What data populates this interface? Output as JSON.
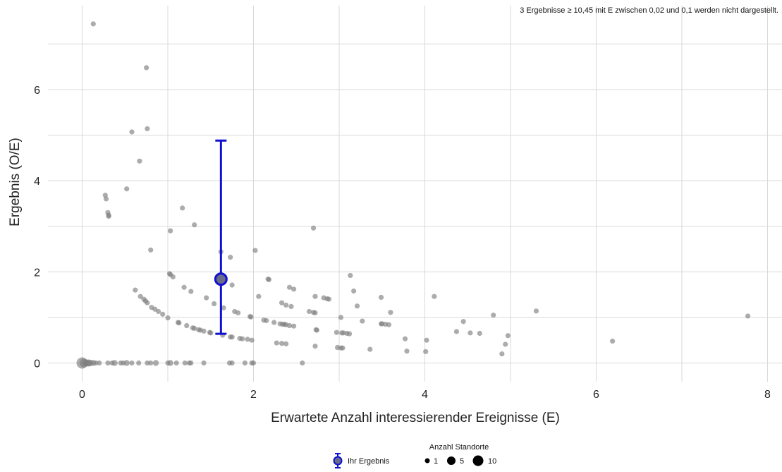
{
  "chart_data": {
    "type": "scatter",
    "xlabel": "Erwartete Anzahl interessierender Ereignisse (E)",
    "ylabel": "Ergebnis (O/E)",
    "xlim": [
      -0.4,
      8.2
    ],
    "ylim": [
      -0.4,
      7.7
    ],
    "x_ticks": [
      0,
      2,
      4,
      6,
      8
    ],
    "y_ticks": [
      0,
      2,
      4,
      6
    ],
    "x_tick_labels": [
      "0",
      "2",
      "4",
      "6",
      "8"
    ],
    "y_tick_labels": [
      "0",
      "2",
      "4",
      "6"
    ],
    "grid": true,
    "note": "3 Ergebnisse ≥ 10,45 mit E zwischen 0,02 und 0,1 werden nicht dargestellt.",
    "highlight": {
      "label": "Ihr Ergebnis",
      "x": 1.62,
      "y": 1.84,
      "ci_low": 0.64,
      "ci_high": 4.88,
      "color": "#1010d0"
    },
    "size_legend": {
      "title": "Anzahl Standorte",
      "sizes": [
        1,
        5,
        10
      ],
      "labels": [
        "1",
        "5",
        "10"
      ]
    },
    "point_color": "#808080",
    "points": [
      [
        0.0,
        0.0,
        10
      ],
      [
        0.02,
        0.0,
        5
      ],
      [
        0.04,
        0.0,
        4
      ],
      [
        0.06,
        0.0,
        3
      ],
      [
        0.08,
        0.0,
        3
      ],
      [
        0.1,
        0.0,
        2
      ],
      [
        0.13,
        0.0,
        2
      ],
      [
        0.16,
        0.0,
        1
      ],
      [
        0.2,
        0.0,
        1
      ],
      [
        0.3,
        0.0,
        1
      ],
      [
        0.35,
        0.0,
        1
      ],
      [
        0.38,
        0.0,
        2
      ],
      [
        0.45,
        0.0,
        1
      ],
      [
        0.48,
        0.0,
        1
      ],
      [
        0.52,
        0.0,
        2
      ],
      [
        0.58,
        0.0,
        1
      ],
      [
        0.66,
        0.0,
        1
      ],
      [
        0.76,
        0.0,
        1
      ],
      [
        0.8,
        0.0,
        1
      ],
      [
        0.86,
        0.0,
        2
      ],
      [
        1.0,
        0.0,
        1
      ],
      [
        1.03,
        0.0,
        2
      ],
      [
        1.1,
        0.0,
        1
      ],
      [
        1.2,
        0.0,
        1
      ],
      [
        1.25,
        0.0,
        1
      ],
      [
        1.27,
        0.0,
        1
      ],
      [
        1.42,
        0.0,
        1
      ],
      [
        1.72,
        0.0,
        1
      ],
      [
        1.75,
        0.0,
        1
      ],
      [
        1.9,
        0.0,
        1
      ],
      [
        1.98,
        0.0,
        1
      ],
      [
        2.0,
        0.0,
        1
      ],
      [
        2.57,
        0.0,
        1
      ],
      [
        0.13,
        7.44,
        1
      ],
      [
        0.75,
        6.48,
        1
      ],
      [
        0.58,
        5.07,
        1
      ],
      [
        0.76,
        5.14,
        1
      ],
      [
        0.67,
        4.43,
        1
      ],
      [
        0.52,
        3.82,
        1
      ],
      [
        0.27,
        3.68,
        1
      ],
      [
        0.28,
        3.6,
        1
      ],
      [
        0.3,
        3.3,
        1
      ],
      [
        0.31,
        3.24,
        1
      ],
      [
        0.31,
        3.22,
        1
      ],
      [
        1.17,
        3.4,
        1
      ],
      [
        1.31,
        3.03,
        1
      ],
      [
        1.03,
        2.9,
        1
      ],
      [
        0.8,
        2.48,
        1
      ],
      [
        2.7,
        2.96,
        1
      ],
      [
        2.02,
        2.47,
        1
      ],
      [
        1.62,
        2.44,
        1
      ],
      [
        1.73,
        2.32,
        1
      ],
      [
        1.02,
        1.96,
        1
      ],
      [
        1.03,
        1.94,
        1
      ],
      [
        1.06,
        1.89,
        1
      ],
      [
        2.17,
        1.84,
        1
      ],
      [
        2.18,
        1.83,
        1
      ],
      [
        3.13,
        1.92,
        1
      ],
      [
        1.75,
        1.71,
        1
      ],
      [
        0.62,
        1.6,
        1
      ],
      [
        1.19,
        1.66,
        1
      ],
      [
        1.27,
        1.57,
        1
      ],
      [
        2.42,
        1.66,
        1
      ],
      [
        2.47,
        1.62,
        1
      ],
      [
        3.17,
        1.58,
        1
      ],
      [
        0.68,
        1.46,
        1
      ],
      [
        0.72,
        1.4,
        1
      ],
      [
        0.74,
        1.36,
        1
      ],
      [
        0.76,
        1.32,
        1
      ],
      [
        1.45,
        1.43,
        1
      ],
      [
        2.06,
        1.46,
        1
      ],
      [
        2.72,
        1.46,
        1
      ],
      [
        2.82,
        1.43,
        1
      ],
      [
        2.86,
        1.41,
        1
      ],
      [
        2.88,
        1.4,
        1
      ],
      [
        3.49,
        1.44,
        1
      ],
      [
        4.11,
        1.46,
        1
      ],
      [
        0.81,
        1.22,
        1
      ],
      [
        0.85,
        1.18,
        1
      ],
      [
        0.89,
        1.13,
        1
      ],
      [
        1.54,
        1.3,
        1
      ],
      [
        1.65,
        1.21,
        1
      ],
      [
        2.33,
        1.32,
        1
      ],
      [
        2.38,
        1.27,
        1
      ],
      [
        2.44,
        1.24,
        1
      ],
      [
        3.21,
        1.25,
        1
      ],
      [
        0.94,
        1.07,
        1
      ],
      [
        1.0,
        0.99,
        1
      ],
      [
        1.78,
        1.13,
        1
      ],
      [
        1.82,
        1.1,
        1
      ],
      [
        2.65,
        1.13,
        1
      ],
      [
        2.7,
        1.11,
        1
      ],
      [
        2.72,
        1.1,
        1
      ],
      [
        3.6,
        1.11,
        1
      ],
      [
        3.02,
        1.0,
        1
      ],
      [
        4.45,
        0.91,
        1
      ],
      [
        4.8,
        1.05,
        1
      ],
      [
        5.3,
        1.14,
        1
      ],
      [
        7.77,
        1.03,
        1
      ],
      [
        1.12,
        0.89,
        1
      ],
      [
        1.13,
        0.88,
        1
      ],
      [
        1.22,
        0.82,
        1
      ],
      [
        1.29,
        0.77,
        1
      ],
      [
        1.31,
        0.76,
        1
      ],
      [
        1.36,
        0.73,
        1
      ],
      [
        1.38,
        0.72,
        1
      ],
      [
        1.42,
        0.7,
        1
      ],
      [
        1.49,
        0.67,
        1
      ],
      [
        1.5,
        0.66,
        1
      ],
      [
        1.96,
        1.02,
        1
      ],
      [
        1.97,
        1.01,
        1
      ],
      [
        2.12,
        0.94,
        1
      ],
      [
        2.15,
        0.93,
        1
      ],
      [
        2.24,
        0.89,
        1
      ],
      [
        2.31,
        0.86,
        1
      ],
      [
        2.34,
        0.85,
        1
      ],
      [
        2.36,
        0.85,
        1
      ],
      [
        2.38,
        0.84,
        1
      ],
      [
        2.42,
        0.82,
        1
      ],
      [
        2.47,
        0.81,
        1
      ],
      [
        2.73,
        0.73,
        1
      ],
      [
        2.74,
        0.72,
        1
      ],
      [
        2.97,
        0.67,
        1
      ],
      [
        3.03,
        0.66,
        1
      ],
      [
        3.05,
        0.66,
        1
      ],
      [
        3.09,
        0.65,
        1
      ],
      [
        3.12,
        0.64,
        1
      ],
      [
        3.27,
        0.92,
        1
      ],
      [
        3.49,
        0.86,
        1
      ],
      [
        3.5,
        0.86,
        1
      ],
      [
        3.54,
        0.85,
        1
      ],
      [
        3.58,
        0.84,
        1
      ],
      [
        4.37,
        0.69,
        1
      ],
      [
        4.53,
        0.66,
        1
      ],
      [
        4.64,
        0.65,
        1
      ],
      [
        4.97,
        0.6,
        1
      ],
      [
        1.64,
        0.61,
        1
      ],
      [
        1.73,
        0.57,
        1
      ],
      [
        1.75,
        0.57,
        1
      ],
      [
        1.84,
        0.54,
        1
      ],
      [
        1.87,
        0.53,
        1
      ],
      [
        1.93,
        0.52,
        1
      ],
      [
        1.98,
        0.5,
        1
      ],
      [
        2.27,
        0.44,
        1
      ],
      [
        2.33,
        0.43,
        1
      ],
      [
        2.38,
        0.42,
        1
      ],
      [
        2.72,
        0.37,
        1
      ],
      [
        2.98,
        0.34,
        1
      ],
      [
        3.02,
        0.33,
        1
      ],
      [
        3.04,
        0.33,
        1
      ],
      [
        3.36,
        0.3,
        1
      ],
      [
        3.77,
        0.53,
        1
      ],
      [
        3.79,
        0.26,
        1
      ],
      [
        4.02,
        0.5,
        1
      ],
      [
        4.01,
        0.25,
        1
      ],
      [
        4.94,
        0.41,
        1
      ],
      [
        4.9,
        0.2,
        1
      ],
      [
        6.19,
        0.48,
        1
      ]
    ]
  }
}
